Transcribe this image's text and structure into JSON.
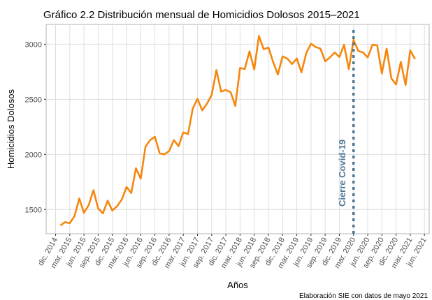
{
  "chart_data": {
    "type": "line",
    "title": "Gráfico 2.2 Distribución mensual de Homicidios Dolosos 2015–2021",
    "xlabel": "Años",
    "ylabel": "Homicidios Dolosos",
    "caption": "Elaboración SIE con datos de mayo 2021",
    "x": [
      "2015-01",
      "2015-02",
      "2015-03",
      "2015-04",
      "2015-05",
      "2015-06",
      "2015-07",
      "2015-08",
      "2015-09",
      "2015-10",
      "2015-11",
      "2015-12",
      "2016-01",
      "2016-02",
      "2016-03",
      "2016-04",
      "2016-05",
      "2016-06",
      "2016-07",
      "2016-08",
      "2016-09",
      "2016-10",
      "2016-11",
      "2016-12",
      "2017-01",
      "2017-02",
      "2017-03",
      "2017-04",
      "2017-05",
      "2017-06",
      "2017-07",
      "2017-08",
      "2017-09",
      "2017-10",
      "2017-11",
      "2017-12",
      "2018-01",
      "2018-02",
      "2018-03",
      "2018-04",
      "2018-05",
      "2018-06",
      "2018-07",
      "2018-08",
      "2018-09",
      "2018-10",
      "2018-11",
      "2018-12",
      "2019-01",
      "2019-02",
      "2019-03",
      "2019-04",
      "2019-05",
      "2019-06",
      "2019-07",
      "2019-08",
      "2019-09",
      "2019-10",
      "2019-11",
      "2019-12",
      "2020-01",
      "2020-02",
      "2020-03",
      "2020-04",
      "2020-05",
      "2020-06",
      "2020-07",
      "2020-08",
      "2020-09",
      "2020-10",
      "2020-11",
      "2020-12",
      "2021-01",
      "2021-02",
      "2021-03",
      "2021-04"
    ],
    "series": [
      {
        "name": "Homicidios Dolosos",
        "color": "#f5870f",
        "values": [
          1355,
          1385,
          1375,
          1440,
          1600,
          1470,
          1540,
          1675,
          1510,
          1465,
          1580,
          1490,
          1530,
          1590,
          1705,
          1650,
          1875,
          1780,
          2070,
          2130,
          2160,
          2010,
          2000,
          2030,
          2130,
          2075,
          2200,
          2185,
          2415,
          2505,
          2400,
          2460,
          2540,
          2765,
          2570,
          2585,
          2565,
          2440,
          2785,
          2775,
          2935,
          2770,
          3075,
          2955,
          2970,
          2840,
          2725,
          2890,
          2870,
          2820,
          2870,
          2745,
          2920,
          3005,
          2975,
          2960,
          2845,
          2880,
          2925,
          2885,
          2995,
          2775,
          3040,
          2940,
          2925,
          2880,
          2995,
          2990,
          2735,
          2960,
          2690,
          2635,
          2840,
          2630,
          2945,
          2865
        ]
      }
    ],
    "xlim": [
      "2014-10",
      "2021-07"
    ],
    "xticks": [
      {
        "value": "2014-12",
        "label": "dic. 2014"
      },
      {
        "value": "2015-03",
        "label": "mar. 2015"
      },
      {
        "value": "2015-06",
        "label": "jun. 2015"
      },
      {
        "value": "2015-09",
        "label": "sep. 2015"
      },
      {
        "value": "2015-12",
        "label": "dic. 2015"
      },
      {
        "value": "2016-03",
        "label": "mar. 2016"
      },
      {
        "value": "2016-06",
        "label": "jun. 2016"
      },
      {
        "value": "2016-09",
        "label": "sep. 2016"
      },
      {
        "value": "2016-12",
        "label": "dic. 2016"
      },
      {
        "value": "2017-03",
        "label": "mar. 2017"
      },
      {
        "value": "2017-06",
        "label": "jun. 2017"
      },
      {
        "value": "2017-09",
        "label": "sep. 2017"
      },
      {
        "value": "2017-12",
        "label": "dic. 2017"
      },
      {
        "value": "2018-03",
        "label": "mar. 2018"
      },
      {
        "value": "2018-06",
        "label": "jun. 2018"
      },
      {
        "value": "2018-09",
        "label": "sep. 2018"
      },
      {
        "value": "2018-12",
        "label": "dic. 2018"
      },
      {
        "value": "2019-03",
        "label": "mar. 2019"
      },
      {
        "value": "2019-06",
        "label": "jun. 2019"
      },
      {
        "value": "2019-09",
        "label": "sep. 2019"
      },
      {
        "value": "2019-12",
        "label": "dic. 2019"
      },
      {
        "value": "2020-03",
        "label": "mar. 2020"
      },
      {
        "value": "2020-06",
        "label": "jun. 2020"
      },
      {
        "value": "2020-09",
        "label": "sep. 2020"
      },
      {
        "value": "2020-12",
        "label": "dic. 2020"
      },
      {
        "value": "2021-03",
        "label": "mar. 2021"
      },
      {
        "value": "2021-06",
        "label": "jun. 2021"
      }
    ],
    "ylim": [
      1280,
      3180
    ],
    "yticks": [
      1500,
      2000,
      2500,
      3000
    ],
    "grid": true,
    "vline": {
      "x": "2020-03",
      "label": "Cierre Covid-19",
      "color": "#4e7894"
    }
  }
}
